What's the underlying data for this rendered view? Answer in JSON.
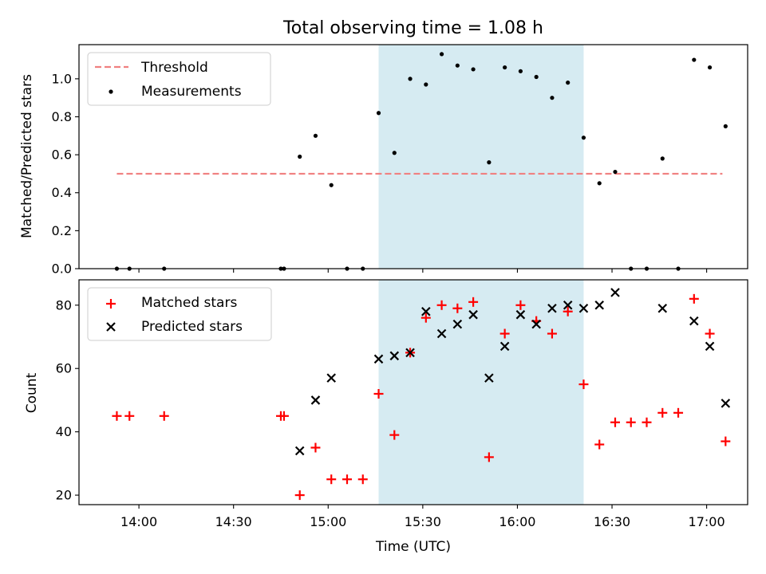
{
  "figure": {
    "title": "Total observing time = 1.08 h",
    "xlabel": "Time (UTC)",
    "x_ticks": [
      "14:00",
      "14:30",
      "15:00",
      "15:30",
      "16:00",
      "16:30",
      "17:00"
    ]
  },
  "chart_data": [
    {
      "type": "scatter",
      "xlabel": "Time (UTC)",
      "ylabel": "Matched/Predicted stars",
      "xlim": [
        "13:41",
        "17:13"
      ],
      "ylim": [
        0,
        1.18
      ],
      "y_ticks": [
        "0.0",
        "0.2",
        "0.4",
        "0.6",
        "0.8",
        "1.0"
      ],
      "legend_position": "top-left",
      "shaded_region": {
        "x_start": "15:16",
        "x_end": "16:21",
        "color": "#add8e6"
      },
      "threshold": {
        "name": "Threshold",
        "y": 0.5,
        "x_start": "13:53",
        "x_end": "17:05",
        "color": "#f08080",
        "style": "dashed"
      },
      "series": [
        {
          "name": "Measurements",
          "marker": "dot",
          "color": "#000000",
          "points": [
            [
              "13:53",
              0.0
            ],
            [
              "13:57",
              0.0
            ],
            [
              "14:08",
              0.0
            ],
            [
              "14:45",
              0.0
            ],
            [
              "14:46",
              0.0
            ],
            [
              "14:51",
              0.59
            ],
            [
              "14:56",
              0.7
            ],
            [
              "15:01",
              0.44
            ],
            [
              "15:06",
              0.0
            ],
            [
              "15:11",
              0.0
            ],
            [
              "15:16",
              0.82
            ],
            [
              "15:21",
              0.61
            ],
            [
              "15:26",
              1.0
            ],
            [
              "15:31",
              0.97
            ],
            [
              "15:36",
              1.13
            ],
            [
              "15:41",
              1.07
            ],
            [
              "15:46",
              1.05
            ],
            [
              "15:51",
              0.56
            ],
            [
              "15:56",
              1.06
            ],
            [
              "16:01",
              1.04
            ],
            [
              "16:06",
              1.01
            ],
            [
              "16:11",
              0.9
            ],
            [
              "16:16",
              0.98
            ],
            [
              "16:21",
              0.69
            ],
            [
              "16:26",
              0.45
            ],
            [
              "16:31",
              0.51
            ],
            [
              "16:36",
              0.0
            ],
            [
              "16:41",
              0.0
            ],
            [
              "16:46",
              0.58
            ],
            [
              "16:51",
              0.0
            ],
            [
              "16:56",
              1.1
            ],
            [
              "17:01",
              1.06
            ],
            [
              "17:06",
              0.75
            ]
          ]
        }
      ]
    },
    {
      "type": "scatter",
      "xlabel": "Time (UTC)",
      "ylabel": "Count",
      "xlim": [
        "13:41",
        "17:13"
      ],
      "ylim": [
        17,
        88
      ],
      "y_ticks": [
        "20",
        "40",
        "60",
        "80"
      ],
      "legend_position": "top-left",
      "shaded_region": {
        "x_start": "15:16",
        "x_end": "16:21",
        "color": "#add8e6"
      },
      "series": [
        {
          "name": "Matched stars",
          "marker": "plus",
          "color": "#ff0000",
          "points": [
            [
              "13:53",
              45
            ],
            [
              "13:57",
              45
            ],
            [
              "14:08",
              45
            ],
            [
              "14:45",
              45
            ],
            [
              "14:46",
              45
            ],
            [
              "14:51",
              20
            ],
            [
              "14:56",
              35
            ],
            [
              "15:01",
              25
            ],
            [
              "15:06",
              25
            ],
            [
              "15:11",
              25
            ],
            [
              "15:16",
              52
            ],
            [
              "15:21",
              39
            ],
            [
              "15:26",
              65
            ],
            [
              "15:31",
              76
            ],
            [
              "15:36",
              80
            ],
            [
              "15:41",
              79
            ],
            [
              "15:46",
              81
            ],
            [
              "15:51",
              32
            ],
            [
              "15:56",
              71
            ],
            [
              "16:01",
              80
            ],
            [
              "16:06",
              75
            ],
            [
              "16:11",
              71
            ],
            [
              "16:16",
              78
            ],
            [
              "16:21",
              55
            ],
            [
              "16:26",
              36
            ],
            [
              "16:31",
              43
            ],
            [
              "16:36",
              43
            ],
            [
              "16:41",
              43
            ],
            [
              "16:46",
              46
            ],
            [
              "16:51",
              46
            ],
            [
              "16:56",
              82
            ],
            [
              "17:01",
              71
            ],
            [
              "17:06",
              37
            ]
          ]
        },
        {
          "name": "Predicted stars",
          "marker": "x",
          "color": "#000000",
          "points": [
            [
              "14:51",
              34
            ],
            [
              "14:56",
              50
            ],
            [
              "15:01",
              57
            ],
            [
              "15:16",
              63
            ],
            [
              "15:21",
              64
            ],
            [
              "15:26",
              65
            ],
            [
              "15:31",
              78
            ],
            [
              "15:36",
              71
            ],
            [
              "15:41",
              74
            ],
            [
              "15:46",
              77
            ],
            [
              "15:51",
              57
            ],
            [
              "15:56",
              67
            ],
            [
              "16:01",
              77
            ],
            [
              "16:06",
              74
            ],
            [
              "16:11",
              79
            ],
            [
              "16:16",
              80
            ],
            [
              "16:21",
              79
            ],
            [
              "16:26",
              80
            ],
            [
              "16:31",
              84
            ],
            [
              "16:46",
              79
            ],
            [
              "16:56",
              75
            ],
            [
              "17:01",
              67
            ],
            [
              "17:06",
              49
            ]
          ]
        }
      ]
    }
  ]
}
